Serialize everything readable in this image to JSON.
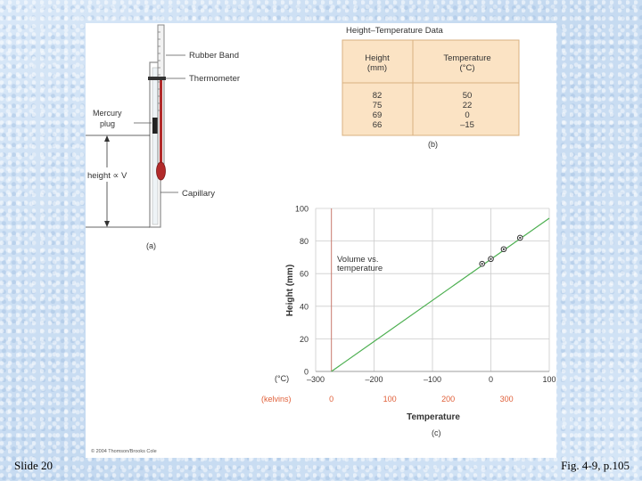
{
  "slide": {
    "number_label": "Slide 20",
    "caption": "Fig. 4-9, p.105"
  },
  "apparatus": {
    "rubber_band": "Rubber Band",
    "thermometer": "Thermometer",
    "mercury_plug_line1": "Mercury",
    "mercury_plug_line2": "plug",
    "height_v": "height ∝ V",
    "capillary": "Capillary",
    "panel": "(a)"
  },
  "table": {
    "title": "Height–Temperature Data",
    "col1_line1": "Height",
    "col1_line2": "(mm)",
    "col2_line1": "Temperature",
    "col2_line2": "(°C)",
    "rows": [
      {
        "height": "82",
        "temp": "50"
      },
      {
        "height": "75",
        "temp": "22"
      },
      {
        "height": "69",
        "temp": "0"
      },
      {
        "height": "66",
        "temp": "–15"
      }
    ],
    "panel": "(b)",
    "colors": {
      "background": "#fbe3c4",
      "border": "#d8b080"
    }
  },
  "copyright": "© 2004 Thomson/Brooks Cole",
  "chart_data": {
    "type": "scatter",
    "annotation_line1": "Volume vs.",
    "annotation_line2": "temperature",
    "ylabel": "Height (mm)",
    "xlabel": "Temperature",
    "x_unit_label": "(°C)",
    "kelvin_unit_label": "(kelvins)",
    "panel": "(c)",
    "xlim": [
      -300,
      100
    ],
    "ylim": [
      0,
      100
    ],
    "x_ticks": [
      "–300",
      "–200",
      "–100",
      "0",
      "100"
    ],
    "x_tick_values": [
      -300,
      -200,
      -100,
      0,
      100
    ],
    "y_ticks": [
      "0",
      "20",
      "40",
      "60",
      "80",
      "100"
    ],
    "y_tick_values": [
      0,
      20,
      40,
      60,
      80,
      100
    ],
    "kelvin_ticks": [
      "0",
      "100",
      "200",
      "300"
    ],
    "kelvin_tick_values_celsius": [
      -273,
      -173,
      -73,
      27
    ],
    "points": [
      {
        "x": -15,
        "y": 66
      },
      {
        "x": 0,
        "y": 69
      },
      {
        "x": 22,
        "y": 75
      },
      {
        "x": 50,
        "y": 82
      }
    ],
    "fit_line": {
      "x_start": -273,
      "y_start": 0,
      "x_end": 100,
      "y_end": 94
    },
    "grid": true,
    "colors": {
      "line": "#4caf50",
      "grid": "#cccccc",
      "absolute_zero": "#c87a6e",
      "kelvin_text": "#e0603a"
    }
  }
}
